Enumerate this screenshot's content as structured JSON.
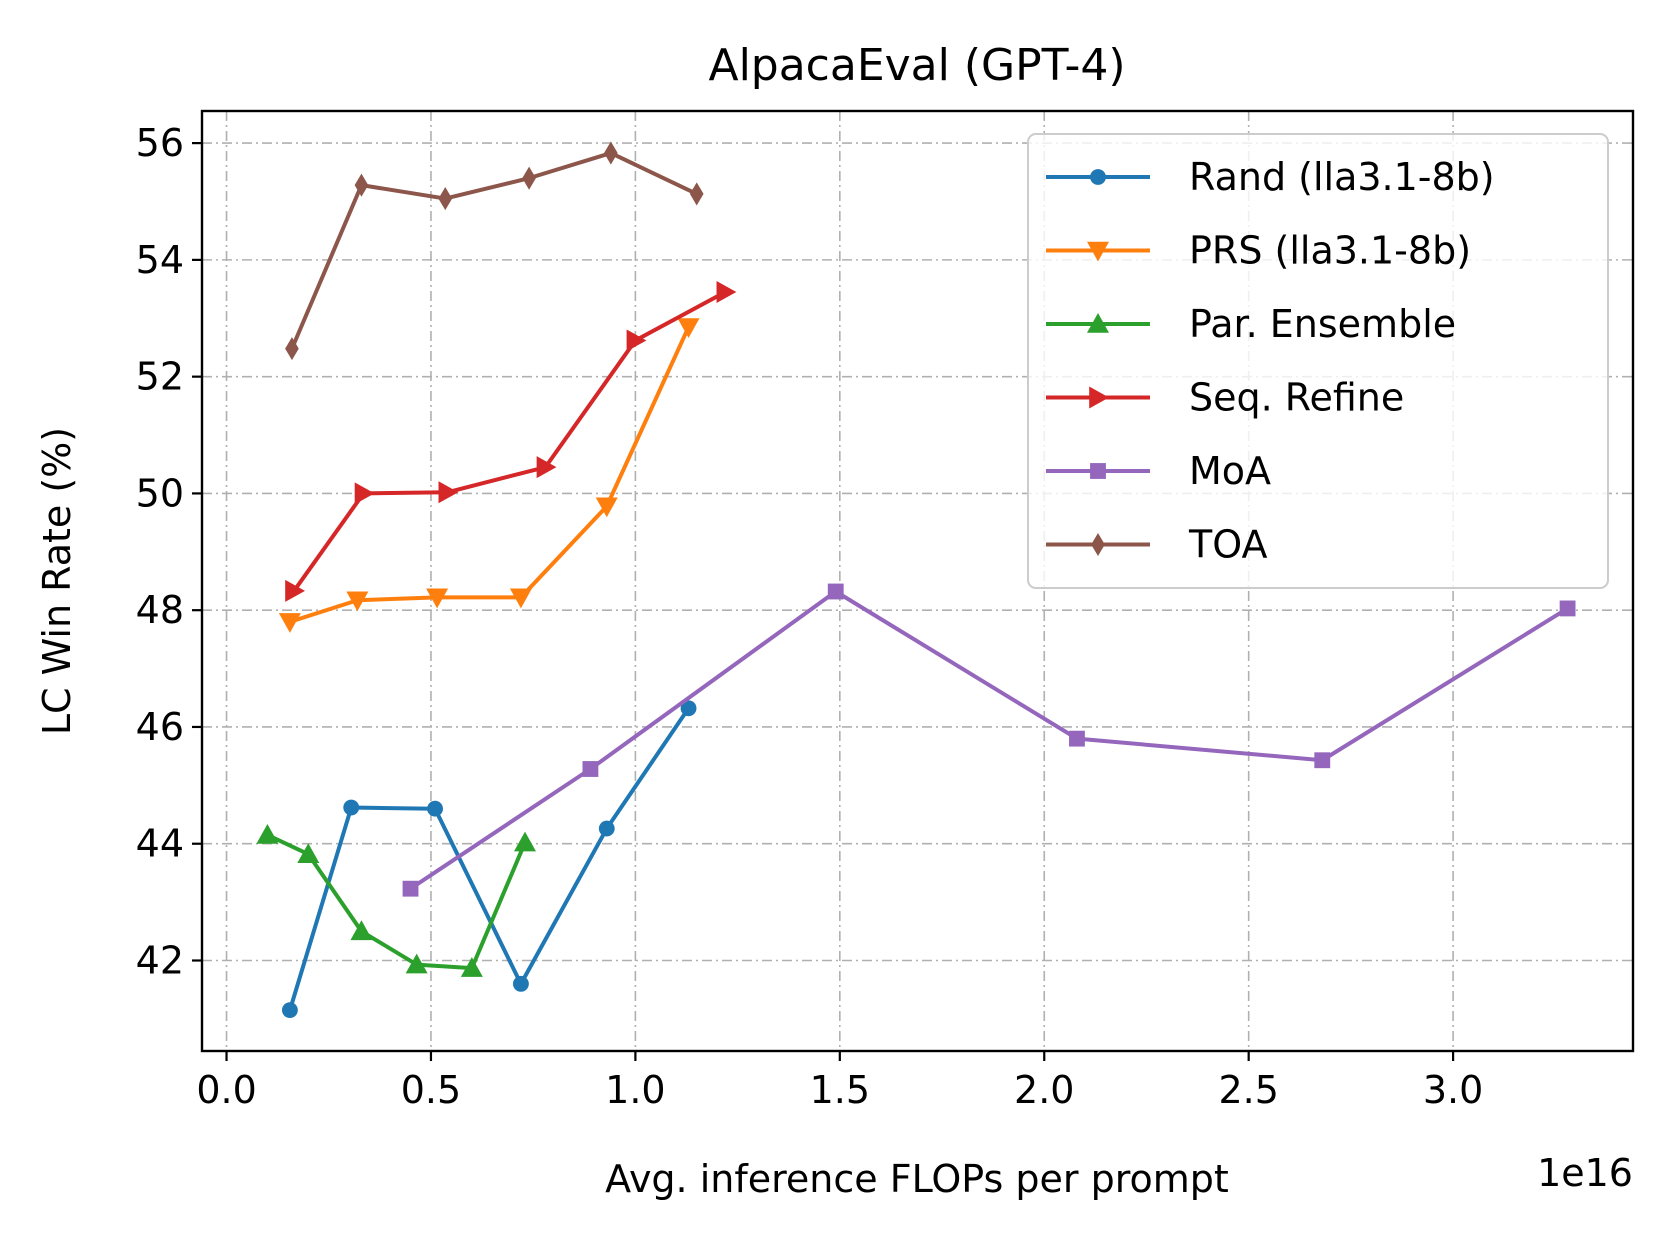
{
  "chart_data": {
    "type": "line",
    "title": "AlpacaEval (GPT-4)",
    "xlabel": "Avg. inference FLOPs per prompt",
    "ylabel": "LC Win Rate (%)",
    "x_offset_text": "1e16",
    "xlim": [
      -0.06,
      3.44
    ],
    "ylim": [
      40.45,
      56.55
    ],
    "xticks": [
      0.0,
      0.5,
      1.0,
      1.5,
      2.0,
      2.5,
      3.0
    ],
    "xtick_labels": [
      "0.0",
      "0.5",
      "1.0",
      "1.5",
      "2.0",
      "2.5",
      "3.0"
    ],
    "yticks": [
      42,
      44,
      46,
      48,
      50,
      52,
      54,
      56
    ],
    "ytick_labels": [
      "42",
      "44",
      "46",
      "48",
      "50",
      "52",
      "54",
      "56"
    ],
    "grid": true,
    "legend_position": "top-right",
    "series": [
      {
        "name": "Rand (lla3.1-8b)",
        "color": "#1f77b4",
        "marker": "circle",
        "x": [
          0.155,
          0.305,
          0.51,
          0.72,
          0.93,
          1.13
        ],
        "y": [
          41.15,
          44.62,
          44.6,
          41.6,
          44.26,
          46.32
        ]
      },
      {
        "name": "PRS (lla3.1-8b)",
        "color": "#ff7f0e",
        "marker": "triangle-down",
        "x": [
          0.155,
          0.32,
          0.515,
          0.72,
          0.93,
          1.13
        ],
        "y": [
          47.8,
          48.17,
          48.22,
          48.22,
          49.78,
          52.85
        ]
      },
      {
        "name": "Par. Ensemble",
        "color": "#2ca02c",
        "marker": "triangle-up",
        "x": [
          0.1,
          0.2,
          0.33,
          0.465,
          0.6,
          0.73
        ],
        "y": [
          44.15,
          43.82,
          42.5,
          41.93,
          41.87,
          44.02
        ]
      },
      {
        "name": "Seq. Refine",
        "color": "#d62728",
        "marker": "triangle-right",
        "x": [
          0.165,
          0.335,
          0.54,
          0.78,
          1.0,
          1.22
        ],
        "y": [
          48.33,
          50.0,
          50.02,
          50.45,
          52.62,
          53.45
        ]
      },
      {
        "name": "MoA",
        "color": "#9467bd",
        "marker": "square",
        "x": [
          0.45,
          0.89,
          1.49,
          2.08,
          2.68,
          3.28
        ],
        "y": [
          43.23,
          45.28,
          48.32,
          45.8,
          45.43,
          48.03
        ]
      },
      {
        "name": "TOA",
        "color": "#8c564b",
        "marker": "diamond",
        "x": [
          0.16,
          0.33,
          0.535,
          0.74,
          0.94,
          1.15
        ],
        "y": [
          52.48,
          55.28,
          55.05,
          55.4,
          55.83,
          55.13
        ]
      }
    ]
  }
}
